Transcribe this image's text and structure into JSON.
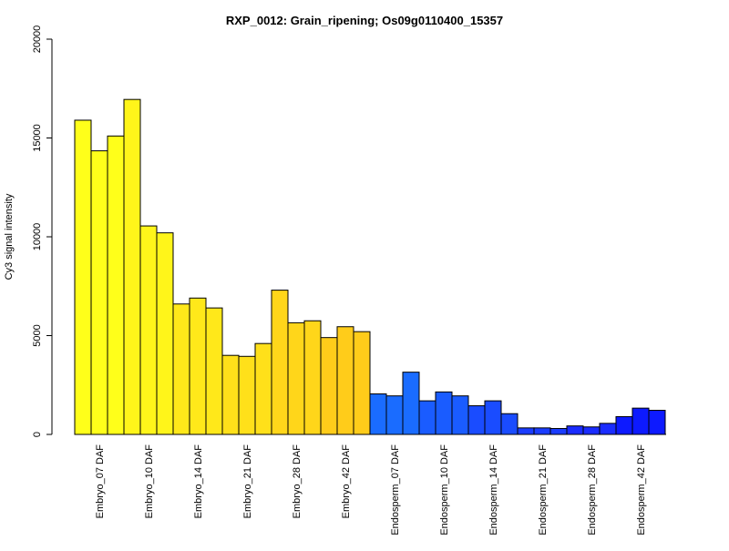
{
  "chart_data": {
    "type": "bar",
    "title": "RXP_0012: Grain_ripening; Os09g0110400_15357",
    "ylabel": "Cy3 signal intensity",
    "xlabel": "",
    "ylim": [
      0,
      20000
    ],
    "yticks": [
      0,
      5000,
      10000,
      15000,
      20000
    ],
    "grid": false,
    "legend": "none",
    "replicates_per_group": 3,
    "categories": [
      "Embryo_07 DAF",
      "Embryo_10 DAF",
      "Embryo_14 DAF",
      "Embryo_21 DAF",
      "Embryo_28 DAF",
      "Embryo_42 DAF",
      "Endosperm_07 DAF",
      "Endosperm_10 DAF",
      "Endosperm_14 DAF",
      "Endosperm_21 DAF",
      "Endosperm_28 DAF",
      "Endosperm_42 DAF"
    ],
    "groups": [
      {
        "category": "Embryo_07 DAF",
        "color": "#ffff1a",
        "values": [
          15900,
          14350,
          15100
        ]
      },
      {
        "category": "Embryo_10 DAF",
        "color": "#fff51a",
        "values": [
          16950,
          10550,
          10200
        ]
      },
      {
        "category": "Embryo_14 DAF",
        "color": "#ffe81a",
        "values": [
          6600,
          6900,
          6400
        ]
      },
      {
        "category": "Embryo_21 DAF",
        "color": "#ffe01a",
        "values": [
          4000,
          3950,
          4600
        ]
      },
      {
        "category": "Embryo_28 DAF",
        "color": "#ffd61a",
        "values": [
          7300,
          5650,
          5750
        ]
      },
      {
        "category": "Embryo_42 DAF",
        "color": "#ffcc1a",
        "values": [
          4900,
          5450,
          5200
        ]
      },
      {
        "category": "Endosperm_07 DAF",
        "color": "#1a6cff",
        "values": [
          2050,
          1950,
          3150
        ]
      },
      {
        "category": "Endosperm_10 DAF",
        "color": "#1a5cff",
        "values": [
          1700,
          2150,
          1950
        ]
      },
      {
        "category": "Endosperm_14 DAF",
        "color": "#1a4cff",
        "values": [
          1450,
          1700,
          1050
        ]
      },
      {
        "category": "Endosperm_21 DAF",
        "color": "#1a3cff",
        "values": [
          330,
          330,
          300
        ]
      },
      {
        "category": "Endosperm_28 DAF",
        "color": "#1a2cff",
        "values": [
          430,
          380,
          560
        ]
      },
      {
        "category": "Endosperm_42 DAF",
        "color": "#0d1aff",
        "values": [
          900,
          1330,
          1220
        ]
      }
    ]
  }
}
